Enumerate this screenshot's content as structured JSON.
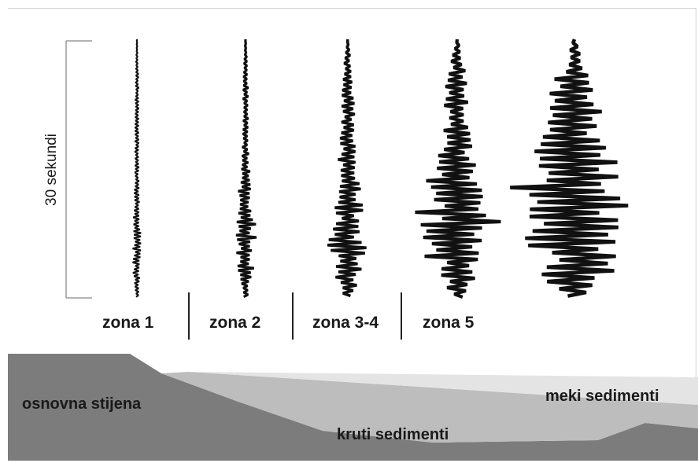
{
  "scale": {
    "label": "30 sekundi"
  },
  "zones": [
    {
      "label": "zona 1"
    },
    {
      "label": "zona 2"
    },
    {
      "label": "zona 3-4"
    },
    {
      "label": "zona 5"
    }
  ],
  "ground": {
    "bedrock_label": "osnovna stijena",
    "stiff_label": "kruti sedimenti",
    "soft_label": "meki sedimenti"
  },
  "colors": {
    "bedrock": "#7c7c7c",
    "stiff": "#bdbdbd",
    "soft": "#e4e4e4",
    "trace": "#111111"
  }
}
